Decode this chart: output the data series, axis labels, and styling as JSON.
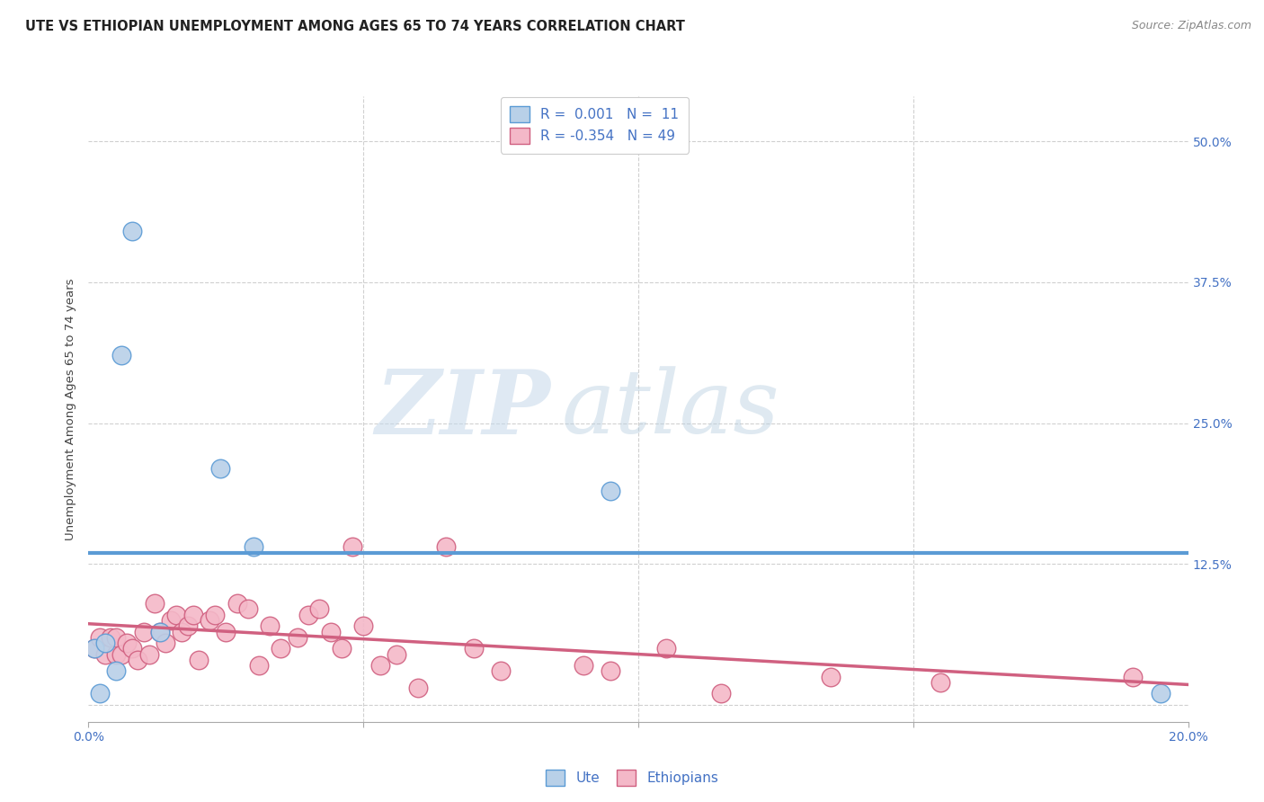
{
  "title": "UTE VS ETHIOPIAN UNEMPLOYMENT AMONG AGES 65 TO 74 YEARS CORRELATION CHART",
  "source": "Source: ZipAtlas.com",
  "ylabel": "Unemployment Among Ages 65 to 74 years",
  "ytick_labels": [
    "",
    "12.5%",
    "25.0%",
    "37.5%",
    "50.0%"
  ],
  "ytick_values": [
    0.0,
    0.125,
    0.25,
    0.375,
    0.5
  ],
  "xmin": 0.0,
  "xmax": 0.2,
  "ymin": -0.015,
  "ymax": 0.54,
  "ute_R": "0.001",
  "ute_N": "11",
  "eth_R": "-0.354",
  "eth_N": "49",
  "ute_color": "#b8d0e8",
  "ute_edge_color": "#5b9bd5",
  "eth_color": "#f4b8c8",
  "eth_edge_color": "#d06080",
  "ute_scatter_x": [
    0.001,
    0.002,
    0.003,
    0.005,
    0.006,
    0.008,
    0.013,
    0.024,
    0.03,
    0.095,
    0.195
  ],
  "ute_scatter_y": [
    0.05,
    0.01,
    0.055,
    0.03,
    0.31,
    0.42,
    0.065,
    0.21,
    0.14,
    0.19,
    0.01
  ],
  "eth_scatter_x": [
    0.001,
    0.002,
    0.003,
    0.004,
    0.005,
    0.005,
    0.006,
    0.007,
    0.008,
    0.009,
    0.01,
    0.011,
    0.012,
    0.013,
    0.014,
    0.015,
    0.016,
    0.017,
    0.018,
    0.019,
    0.02,
    0.022,
    0.023,
    0.025,
    0.027,
    0.029,
    0.031,
    0.033,
    0.035,
    0.038,
    0.04,
    0.042,
    0.044,
    0.046,
    0.048,
    0.05,
    0.053,
    0.056,
    0.06,
    0.065,
    0.07,
    0.075,
    0.09,
    0.095,
    0.105,
    0.115,
    0.135,
    0.155,
    0.19
  ],
  "eth_scatter_y": [
    0.05,
    0.06,
    0.045,
    0.06,
    0.045,
    0.06,
    0.045,
    0.055,
    0.05,
    0.04,
    0.065,
    0.045,
    0.09,
    0.065,
    0.055,
    0.075,
    0.08,
    0.065,
    0.07,
    0.08,
    0.04,
    0.075,
    0.08,
    0.065,
    0.09,
    0.085,
    0.035,
    0.07,
    0.05,
    0.06,
    0.08,
    0.085,
    0.065,
    0.05,
    0.14,
    0.07,
    0.035,
    0.045,
    0.015,
    0.14,
    0.05,
    0.03,
    0.035,
    0.03,
    0.05,
    0.01,
    0.025,
    0.02,
    0.025
  ],
  "ute_trend_x": [
    0.0,
    0.2
  ],
  "ute_trend_y": [
    0.135,
    0.135
  ],
  "eth_trend_x": [
    0.0,
    0.2
  ],
  "eth_trend_y": [
    0.072,
    0.018
  ],
  "watermark_zip": "ZIP",
  "watermark_atlas": "atlas",
  "background_color": "#ffffff",
  "grid_color": "#d0d0d0",
  "tick_color": "#4472c4",
  "title_color": "#222222",
  "source_color": "#888888",
  "ylabel_color": "#444444"
}
